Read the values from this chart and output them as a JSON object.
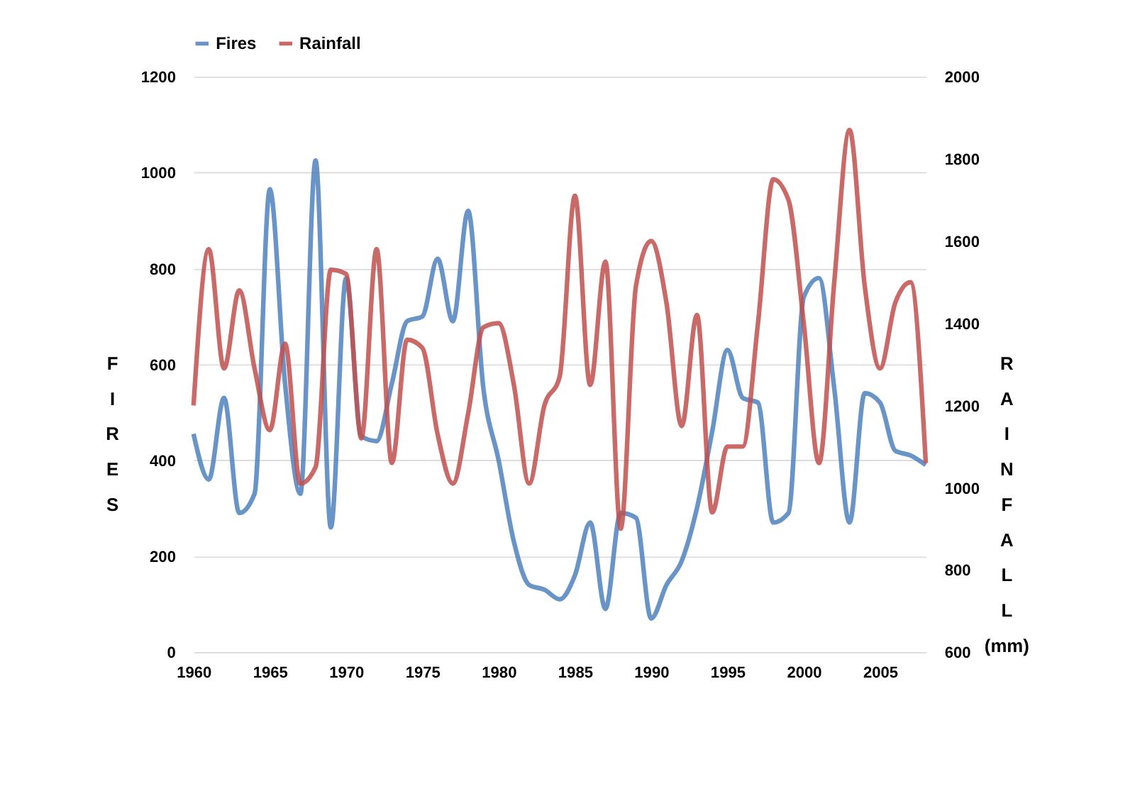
{
  "chart_data": {
    "type": "line",
    "x": [
      1960,
      1961,
      1962,
      1963,
      1964,
      1965,
      1966,
      1967,
      1968,
      1969,
      1970,
      1971,
      1972,
      1973,
      1974,
      1975,
      1976,
      1977,
      1978,
      1979,
      1980,
      1981,
      1982,
      1983,
      1984,
      1985,
      1986,
      1987,
      1988,
      1989,
      1990,
      1991,
      1992,
      1993,
      1994,
      1995,
      1996,
      1997,
      1998,
      1999,
      2000,
      2001,
      2002,
      2003,
      2004,
      2005,
      2006,
      2007,
      2008
    ],
    "series": [
      {
        "name": "Fires",
        "color": "#4f81bd",
        "values": [
          455,
          360,
          530,
          290,
          330,
          965,
          560,
          330,
          1025,
          260,
          780,
          450,
          440,
          560,
          690,
          700,
          820,
          690,
          920,
          550,
          400,
          230,
          140,
          130,
          110,
          160,
          270,
          90,
          290,
          280,
          70,
          140,
          190,
          300,
          460,
          630,
          530,
          520,
          270,
          290,
          740,
          780,
          550,
          270,
          540,
          520,
          420,
          410,
          390
        ]
      },
      {
        "name": "Rainfall",
        "color": "#c0504d",
        "axis": "y2",
        "values": [
          1200,
          1580,
          1290,
          1480,
          1290,
          1140,
          1350,
          1010,
          1050,
          1530,
          1520,
          1120,
          1580,
          1060,
          1360,
          1340,
          1130,
          1010,
          1180,
          1390,
          1400,
          1250,
          1010,
          1200,
          1270,
          1710,
          1250,
          1550,
          900,
          1490,
          1600,
          1450,
          1150,
          1420,
          940,
          1100,
          1100,
          1400,
          1750,
          1700,
          1400,
          1060,
          1500,
          1870,
          1490,
          1290,
          1450,
          1500,
          1060
        ]
      }
    ],
    "ylabel": "FIRES",
    "y2label": "RAINFALL (mm)",
    "xlim": [
      1960,
      2008
    ],
    "xticks": [
      1960,
      1965,
      1970,
      1975,
      1980,
      1985,
      1990,
      1995,
      2000,
      2005
    ],
    "ylim": [
      0,
      1200
    ],
    "yticks": [
      0,
      200,
      400,
      600,
      800,
      1000,
      1200
    ],
    "y2lim": [
      600,
      2000
    ],
    "y2ticks": [
      600,
      800,
      1000,
      1200,
      1400,
      1600,
      1800,
      2000
    ],
    "grid": "y",
    "legend": "top",
    "marker": "none",
    "line_style": "solid"
  }
}
